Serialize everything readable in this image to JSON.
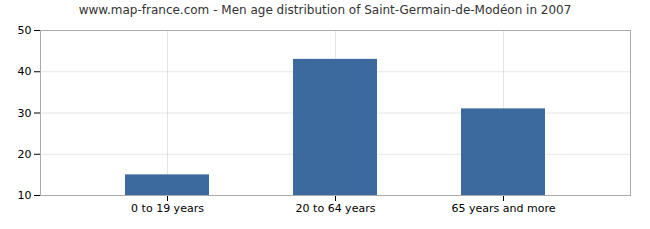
{
  "chart_data": {
    "type": "bar",
    "title": "www.map-france.com - Men age distribution of Saint-Germain-de-Modéon in 2007",
    "categories": [
      "0 to 19 years",
      "20 to 64 years",
      "65 years and more"
    ],
    "values": [
      15,
      43,
      31
    ],
    "color": "#3d6a9e",
    "ylim": [
      10,
      50
    ],
    "yticks": [
      10,
      20,
      30,
      40,
      50
    ],
    "grid": true
  }
}
